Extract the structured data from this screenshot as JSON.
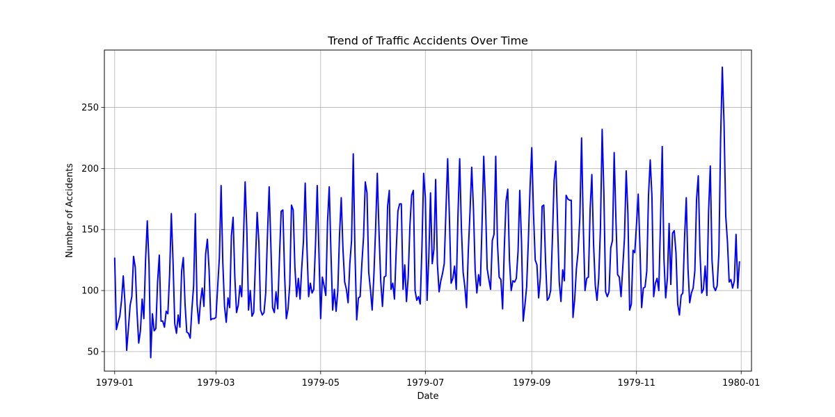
{
  "chart_data": {
    "type": "line",
    "title": "Trend of Traffic Accidents Over Time",
    "xlabel": "Date",
    "ylabel": "Number of Accidents",
    "grid": true,
    "x_start": "1979-01-01",
    "x_step_days": 1,
    "xlim_days": [
      -6,
      371
    ],
    "ylim": [
      34,
      297
    ],
    "x_ticks": [
      {
        "label": "1979-01",
        "day": 0
      },
      {
        "label": "1979-03",
        "day": 59
      },
      {
        "label": "1979-05",
        "day": 120
      },
      {
        "label": "1979-07",
        "day": 181
      },
      {
        "label": "1979-09",
        "day": 243
      },
      {
        "label": "1979-11",
        "day": 304
      },
      {
        "label": "1980-01",
        "day": 365
      }
    ],
    "y_ticks": [
      50,
      100,
      150,
      200,
      250
    ],
    "series": [
      {
        "name": "Accidents",
        "color": "#0000ff",
        "values": [
          127,
          68,
          74,
          79,
          92,
          112,
          90,
          51,
          69,
          88,
          95,
          128,
          119,
          83,
          57,
          67,
          93,
          77,
          125,
          157,
          122,
          45,
          81,
          67,
          69,
          107,
          129,
          75,
          75,
          70,
          83,
          81,
          113,
          163,
          124,
          73,
          65,
          80,
          70,
          116,
          127,
          89,
          66,
          65,
          61,
          85,
          104,
          163,
          89,
          73,
          91,
          102,
          87,
          130,
          142,
          117,
          76,
          77,
          77,
          78,
          103,
          127,
          186,
          123,
          87,
          74,
          94,
          86,
          145,
          160,
          111,
          82,
          88,
          104,
          95,
          141,
          189,
          149,
          84,
          100,
          79,
          82,
          123,
          164,
          140,
          84,
          80,
          82,
          98,
          145,
          185,
          137,
          86,
          82,
          99,
          85,
          127,
          165,
          166,
          113,
          77,
          85,
          105,
          170,
          166,
          119,
          95,
          110,
          93,
          119,
          141,
          188,
          136,
          95,
          106,
          98,
          101,
          138,
          186,
          131,
          77,
          111,
          104,
          96,
          156,
          185,
          131,
          84,
          101,
          83,
          100,
          146,
          176,
          134,
          107,
          101,
          90,
          122,
          141,
          212,
          131,
          76,
          94,
          95,
          122,
          144,
          189,
          180,
          115,
          101,
          84,
          112,
          150,
          196,
          148,
          108,
          87,
          111,
          112,
          169,
          182,
          101,
          106,
          93,
          132,
          165,
          171,
          171,
          101,
          121,
          91,
          111,
          153,
          178,
          182,
          100,
          92,
          95,
          89,
          135,
          196,
          176,
          92,
          127,
          180,
          122,
          134,
          191,
          122,
          99,
          108,
          114,
          122,
          166,
          208,
          160,
          106,
          110,
          120,
          101,
          162,
          208,
          151,
          115,
          103,
          86,
          132,
          164,
          201,
          168,
          117,
          98,
          113,
          104,
          153,
          210,
          173,
          118,
          109,
          101,
          141,
          146,
          210,
          139,
          111,
          109,
          85,
          135,
          173,
          183,
          125,
          100,
          108,
          107,
          110,
          132,
          182,
          141,
          75,
          88,
          103,
          141,
          185,
          217,
          163,
          125,
          121,
          94,
          111,
          169,
          170,
          125,
          92,
          94,
          100,
          142,
          190,
          206,
          156,
          107,
          91,
          117,
          108,
          178,
          175,
          174,
          174,
          78,
          93,
          118,
          132,
          160,
          225,
          153,
          100,
          110,
          111,
          167,
          195,
          138,
          104,
          92,
          110,
          151,
          232,
          180,
          99,
          95,
          99,
          135,
          141,
          213,
          159,
          113,
          111,
          95,
          119,
          143,
          198,
          163,
          84,
          89,
          133,
          131,
          154,
          179,
          136,
          86,
          102,
          103,
          116,
          178,
          207,
          177,
          95,
          106,
          110,
          100,
          157,
          218,
          126,
          94,
          110,
          155,
          105,
          147,
          149,
          131,
          89,
          80,
          96,
          98,
          143,
          176,
          118,
          90,
          98,
          102,
          116,
          175,
          194,
          131,
          98,
          101,
          120,
          96,
          165,
          202,
          125,
          103,
          100,
          104,
          131,
          224,
          283,
          237,
          161,
          140,
          107,
          109,
          102,
          108,
          146,
          102,
          124
        ]
      }
    ]
  }
}
